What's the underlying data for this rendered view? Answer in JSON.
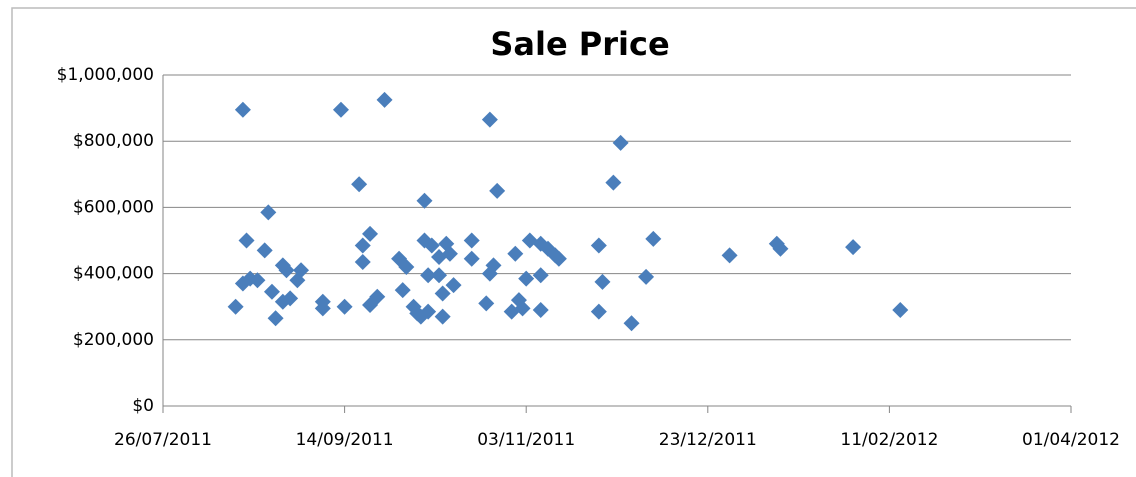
{
  "chart_data": {
    "type": "scatter",
    "title": "Sale Price",
    "series": [
      {
        "color": "#4a7ebb",
        "x": [
          "2011-08-15",
          "2011-08-17",
          "2011-08-17",
          "2011-08-18",
          "2011-08-19",
          "2011-08-21",
          "2011-08-23",
          "2011-08-24",
          "2011-08-25",
          "2011-08-26",
          "2011-08-28",
          "2011-08-29",
          "2011-08-28",
          "2011-08-30",
          "2011-09-01",
          "2011-09-02",
          "2011-09-08",
          "2011-09-08",
          "2011-09-13",
          "2011-09-14",
          "2011-09-18",
          "2011-09-19",
          "2011-09-19",
          "2011-09-21",
          "2011-09-21",
          "2011-09-23",
          "2011-09-25",
          "2011-09-29",
          "2011-09-30",
          "2011-10-01",
          "2011-10-03",
          "2011-10-04",
          "2011-10-05",
          "2011-10-06",
          "2011-10-06",
          "2011-10-07",
          "2011-10-07",
          "2011-10-08",
          "2011-10-10",
          "2011-10-10",
          "2011-10-11",
          "2011-10-11",
          "2011-10-12",
          "2011-10-13",
          "2011-10-14",
          "2011-10-19",
          "2011-10-19",
          "2011-10-23",
          "2011-10-24",
          "2011-10-24",
          "2011-10-25",
          "2011-10-26",
          "2011-10-31",
          "2011-10-30",
          "2011-11-01",
          "2011-11-02",
          "2011-11-03",
          "2011-11-04",
          "2011-11-07",
          "2011-11-07",
          "2011-11-07",
          "2011-11-09",
          "2011-11-11",
          "2011-11-12",
          "2011-11-23",
          "2011-11-24",
          "2011-11-23",
          "2011-11-27",
          "2011-11-29",
          "2011-12-02",
          "2011-12-06",
          "2011-12-08",
          "2011-12-29",
          "2012-01-11",
          "2012-01-12",
          "2012-02-01",
          "2012-02-14"
        ],
        "values": [
          300000,
          895000,
          370000,
          500000,
          385000,
          380000,
          470000,
          585000,
          345000,
          265000,
          425000,
          410000,
          315000,
          325000,
          380000,
          410000,
          315000,
          295000,
          895000,
          300000,
          670000,
          485000,
          435000,
          520000,
          305000,
          330000,
          925000,
          445000,
          350000,
          420000,
          300000,
          280000,
          270000,
          620000,
          500000,
          395000,
          285000,
          485000,
          450000,
          395000,
          270000,
          340000,
          490000,
          460000,
          365000,
          500000,
          445000,
          310000,
          400000,
          865000,
          425000,
          650000,
          460000,
          285000,
          320000,
          295000,
          385000,
          500000,
          490000,
          395000,
          290000,
          475000,
          455000,
          445000,
          485000,
          375000,
          285000,
          675000,
          795000,
          250000,
          390000,
          505000,
          455000,
          490000,
          475000,
          480000,
          290000
        ]
      }
    ],
    "xlim": [
      "2011-07-26",
      "2012-04-01"
    ],
    "xticks": [
      {
        "value": "2011-07-26",
        "label": "26/07/2011"
      },
      {
        "value": "2011-09-14",
        "label": "14/09/2011"
      },
      {
        "value": "2011-11-03",
        "label": "03/11/2011"
      },
      {
        "value": "2011-12-23",
        "label": "23/12/2011"
      },
      {
        "value": "2012-02-11",
        "label": "11/02/2012"
      },
      {
        "value": "2012-04-01",
        "label": "01/04/2012"
      }
    ],
    "ylim": [
      0,
      1000000
    ],
    "yticks": [
      {
        "value": 0,
        "label": "$0"
      },
      {
        "value": 200000,
        "label": "$200,000"
      },
      {
        "value": 400000,
        "label": "$400,000"
      },
      {
        "value": 600000,
        "label": "$600,000"
      },
      {
        "value": 800000,
        "label": "$800,000"
      },
      {
        "value": 1000000,
        "label": "$1,000,000"
      }
    ],
    "grid": true
  }
}
